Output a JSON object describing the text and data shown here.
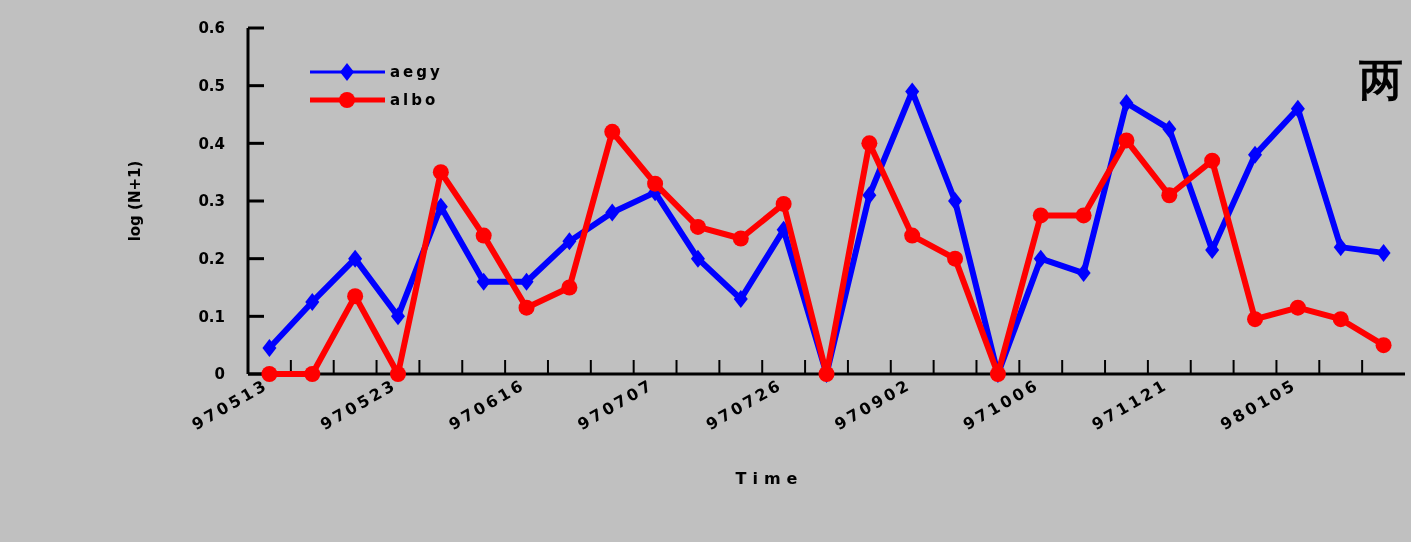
{
  "chart_data": {
    "type": "line",
    "title": "两",
    "xlabel": "Time",
    "ylabel": "log (N+1)",
    "categories": [
      "970513",
      null,
      null,
      "970523",
      null,
      null,
      "970616",
      null,
      null,
      "970707",
      null,
      null,
      "970726",
      null,
      null,
      "970902",
      null,
      null,
      "971006",
      null,
      null,
      "971121",
      null,
      null,
      "980105",
      null,
      null
    ],
    "series": [
      {
        "name": "aegy",
        "color": "#0000ff",
        "marker": "diamond",
        "values": [
          0.045,
          0.125,
          0.2,
          0.1,
          0.29,
          0.16,
          0.16,
          0.23,
          0.28,
          0.315,
          0.2,
          0.13,
          0.25,
          0,
          0.31,
          0.49,
          0.3,
          0,
          0.2,
          0.175,
          0.47,
          0.425,
          0.215,
          0.38,
          0.46,
          0.22,
          0.21
        ]
      },
      {
        "name": "albo",
        "color": "#ff0000",
        "marker": "circle",
        "values": [
          0,
          0,
          0.135,
          0,
          0.35,
          0.24,
          0.115,
          0.15,
          0.42,
          0.33,
          0.255,
          0.235,
          0.295,
          0,
          0.4,
          0.24,
          0.2,
          0,
          0.275,
          0.275,
          0.405,
          0.31,
          0.37,
          0.095,
          0.115,
          0.095,
          0.05
        ]
      }
    ],
    "ylim": [
      0,
      0.6
    ],
    "yticks": [
      0,
      0.1,
      0.2,
      0.3,
      0.4,
      0.5,
      0.6
    ],
    "grid": false,
    "legend": "top left"
  }
}
